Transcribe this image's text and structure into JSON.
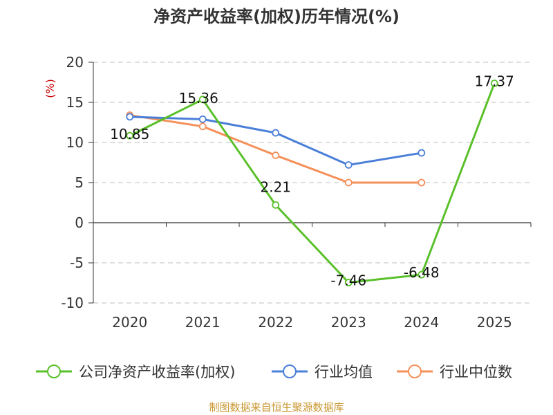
{
  "chart_data": {
    "type": "line",
    "title": "净资产收益率(加权)历年情况(%)",
    "ylabel": "(%)",
    "xlabel": "",
    "categories": [
      "2020",
      "2021",
      "2022",
      "2023",
      "2024",
      "2025"
    ],
    "ylim": [
      -10,
      20
    ],
    "yticks": [
      20,
      15,
      10,
      5,
      0,
      -5,
      -10
    ],
    "grid": true,
    "legend_position": "bottom",
    "series": [
      {
        "name": "公司净资产收益率(加权)",
        "color": "#5ac02a",
        "values": [
          10.85,
          15.36,
          2.21,
          -7.46,
          -6.48,
          17.37
        ],
        "labels": [
          "10.85",
          "15.36",
          "2.21",
          "-7.46",
          "-6.48",
          "17.37"
        ]
      },
      {
        "name": "行业均值",
        "color": "#4a7fd8",
        "values": [
          13.2,
          12.9,
          11.2,
          7.2,
          8.7,
          null
        ]
      },
      {
        "name": "行业中位数",
        "color": "#f5905a",
        "values": [
          13.4,
          12.0,
          8.4,
          5.0,
          5.0,
          null
        ]
      }
    ],
    "source": "制图数据来自恒生聚源数据库"
  }
}
